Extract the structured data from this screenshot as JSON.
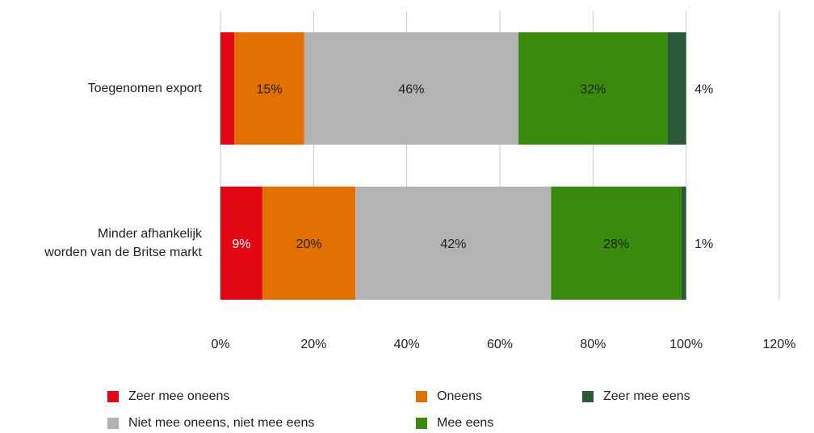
{
  "chart_data": {
    "type": "bar",
    "orientation": "horizontal",
    "stacked": true,
    "categories": [
      "Toegenomen export",
      "Minder afhankelijk worden van de Britse markt"
    ],
    "category_lines": [
      [
        "Toegenomen export"
      ],
      [
        "Minder afhankelijk",
        "worden van de Britse markt"
      ]
    ],
    "series": [
      {
        "name": "Zeer mee oneens",
        "color": "#e30613",
        "values": [
          3,
          9
        ],
        "labels": [
          "",
          "9%"
        ]
      },
      {
        "name": "Oneens",
        "color": "#e27000",
        "values": [
          15,
          20
        ],
        "labels": [
          "15%",
          "20%"
        ]
      },
      {
        "name": "Niet mee oneens, niet mee eens",
        "color": "#b3b3b3",
        "values": [
          46,
          42
        ],
        "labels": [
          "46%",
          "42%"
        ]
      },
      {
        "name": "Mee eens",
        "color": "#3a8a0e",
        "values": [
          32,
          28
        ],
        "labels": [
          "32%",
          "28%"
        ]
      },
      {
        "name": "Zeer mee eens",
        "color": "#2a5a38",
        "values": [
          4,
          1
        ],
        "labels": [
          "4%",
          "1%"
        ]
      }
    ],
    "xlim": [
      0,
      120
    ],
    "xticks": [
      "0%",
      "20%",
      "40%",
      "60%",
      "80%",
      "100%",
      "120%"
    ],
    "grid": true,
    "legend_position": "bottom"
  }
}
